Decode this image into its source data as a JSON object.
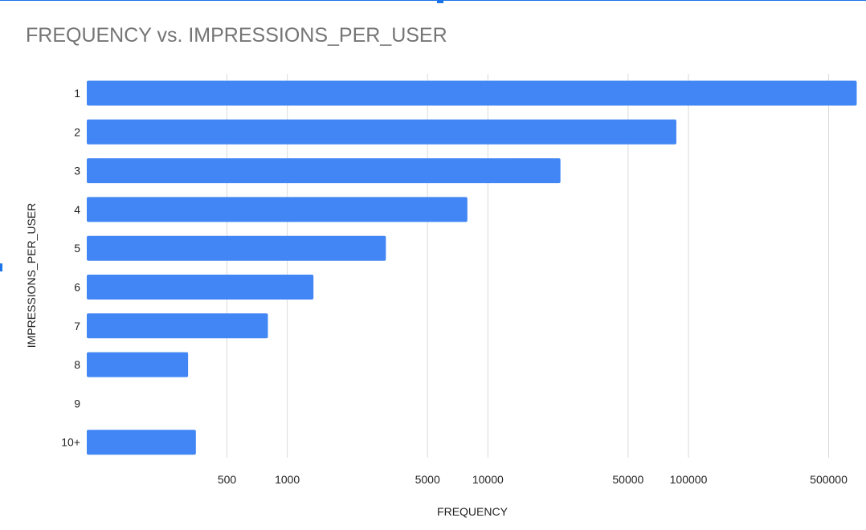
{
  "chart_data": {
    "type": "bar",
    "orientation": "horizontal",
    "title": "FREQUENCY vs. IMPRESSIONS_PER_USER",
    "xlabel": "FREQUENCY",
    "ylabel": "IMPRESSIONS_PER_USER",
    "x_scale": "log",
    "xlim": [
      100,
      700000
    ],
    "x_ticks": [
      500,
      1000,
      5000,
      10000,
      50000,
      100000,
      500000
    ],
    "grid": true,
    "legend": "none",
    "bar_color": "#4285f4",
    "categories": [
      "1",
      "2",
      "3",
      "4",
      "5",
      "6",
      "7",
      "8",
      "9",
      "10+"
    ],
    "values": [
      690000,
      87000,
      23000,
      7900,
      3100,
      1350,
      800,
      320,
      null,
      350
    ]
  },
  "colors": {
    "bar": "#4285f4",
    "grid": "#dadada",
    "title": "#757575",
    "frame": "#1a73e8"
  }
}
